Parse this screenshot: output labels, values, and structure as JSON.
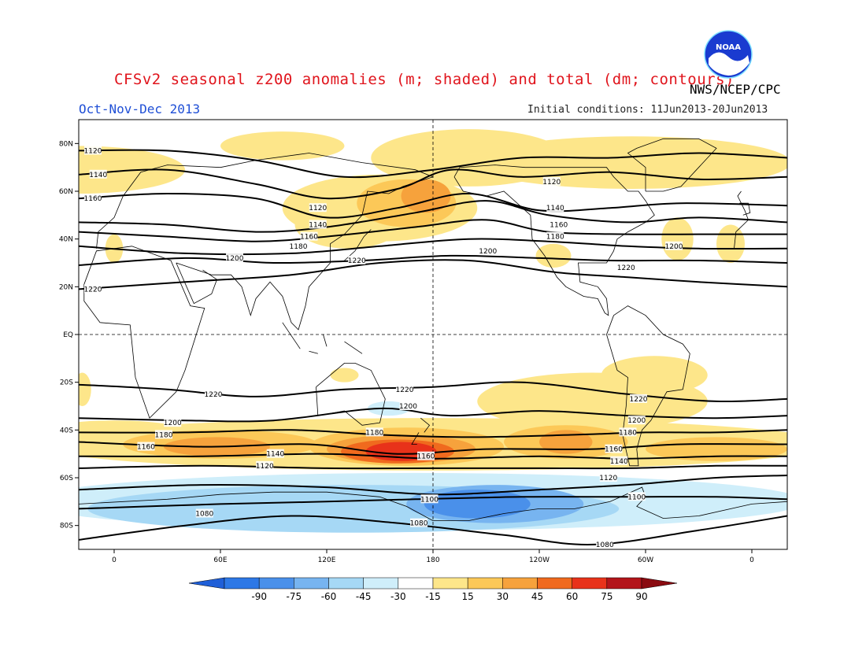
{
  "header": {
    "title": "CFSv2 seasonal z200 anomalies (m; shaded) and total (dm; contours)",
    "agency": "NWS/NCEP/CPC",
    "season": "Oct-Nov-Dec 2013",
    "initial_conditions": "Initial conditions: 11Jun2013-20Jun2013",
    "logo_text": "NOAA"
  },
  "axes": {
    "lat_labels": [
      "80N",
      "60N",
      "40N",
      "20N",
      "EQ",
      "20S",
      "40S",
      "60S",
      "80S"
    ],
    "lat_values": [
      80,
      60,
      40,
      20,
      0,
      -20,
      -40,
      -60,
      -80
    ],
    "lon_labels": [
      "0",
      "60E",
      "120E",
      "180",
      "120W",
      "60W",
      "0"
    ],
    "lon_values": [
      0,
      60,
      120,
      180,
      240,
      300,
      360
    ]
  },
  "colorbar": {
    "labels": [
      "-90",
      "-75",
      "-60",
      "-45",
      "-30",
      "-15",
      "15",
      "30",
      "45",
      "60",
      "75",
      "90"
    ],
    "colors": [
      "#1f5fd8",
      "#2d78e6",
      "#4a90ea",
      "#77b4f0",
      "#a6d8f5",
      "#cfeefa",
      "#ffffff",
      "#fde68a",
      "#fcc858",
      "#f6a23c",
      "#f06a1e",
      "#e8321a",
      "#b3141a",
      "#8a0a10"
    ]
  },
  "anomaly_colors": {
    "p15": "#fde68a",
    "p30": "#fcc858",
    "p45": "#f6a23c",
    "p60": "#f06a1e",
    "p75": "#e8321a",
    "n15": "#cfeefa",
    "n30": "#a6d8f5",
    "n45": "#77b4f0",
    "n60": "#4a90ea"
  },
  "contour_labels": [
    {
      "text": "1120",
      "lon": -12,
      "lat": 77
    },
    {
      "text": "1140",
      "lon": -9,
      "lat": 67
    },
    {
      "text": "1160",
      "lon": -12,
      "lat": 57
    },
    {
      "text": "1120",
      "lon": 115,
      "lat": 53
    },
    {
      "text": "1140",
      "lon": 115,
      "lat": 46
    },
    {
      "text": "1160",
      "lon": 110,
      "lat": 41
    },
    {
      "text": "1180",
      "lon": 104,
      "lat": 37
    },
    {
      "text": "1200",
      "lon": 68,
      "lat": 32
    },
    {
      "text": "1220",
      "lon": 137,
      "lat": 31
    },
    {
      "text": "1200",
      "lon": 211,
      "lat": 35
    },
    {
      "text": "1220",
      "lon": -12,
      "lat": 19
    },
    {
      "text": "1120",
      "lon": 247,
      "lat": 64
    },
    {
      "text": "1140",
      "lon": 249,
      "lat": 53
    },
    {
      "text": "1160",
      "lon": 251,
      "lat": 46
    },
    {
      "text": "1180",
      "lon": 249,
      "lat": 41
    },
    {
      "text": "1200",
      "lon": 316,
      "lat": 37
    },
    {
      "text": "1220",
      "lon": 289,
      "lat": 28
    },
    {
      "text": "1220",
      "lon": 56,
      "lat": -25
    },
    {
      "text": "1220",
      "lon": 164,
      "lat": -23
    },
    {
      "text": "1200",
      "lon": 166,
      "lat": -30
    },
    {
      "text": "1200",
      "lon": 33,
      "lat": -37
    },
    {
      "text": "1180",
      "lon": 28,
      "lat": -42
    },
    {
      "text": "1160",
      "lon": 18,
      "lat": -47
    },
    {
      "text": "1140",
      "lon": 91,
      "lat": -50
    },
    {
      "text": "1120",
      "lon": 85,
      "lat": -55
    },
    {
      "text": "1180",
      "lon": 147,
      "lat": -41
    },
    {
      "text": "1160",
      "lon": 176,
      "lat": -51
    },
    {
      "text": "1220",
      "lon": 296,
      "lat": -27
    },
    {
      "text": "1200",
      "lon": 295,
      "lat": -36
    },
    {
      "text": "1180",
      "lon": 290,
      "lat": -41
    },
    {
      "text": "1160",
      "lon": 282,
      "lat": -48
    },
    {
      "text": "1140",
      "lon": 285,
      "lat": -53
    },
    {
      "text": "1120",
      "lon": 279,
      "lat": -60
    },
    {
      "text": "1100",
      "lon": 178,
      "lat": -69
    },
    {
      "text": "1100",
      "lon": 295,
      "lat": -68
    },
    {
      "text": "1080",
      "lon": 51,
      "lat": -75
    },
    {
      "text": "1080",
      "lon": 172,
      "lat": -79
    },
    {
      "text": "1080",
      "lon": 277,
      "lat": -88
    }
  ]
}
